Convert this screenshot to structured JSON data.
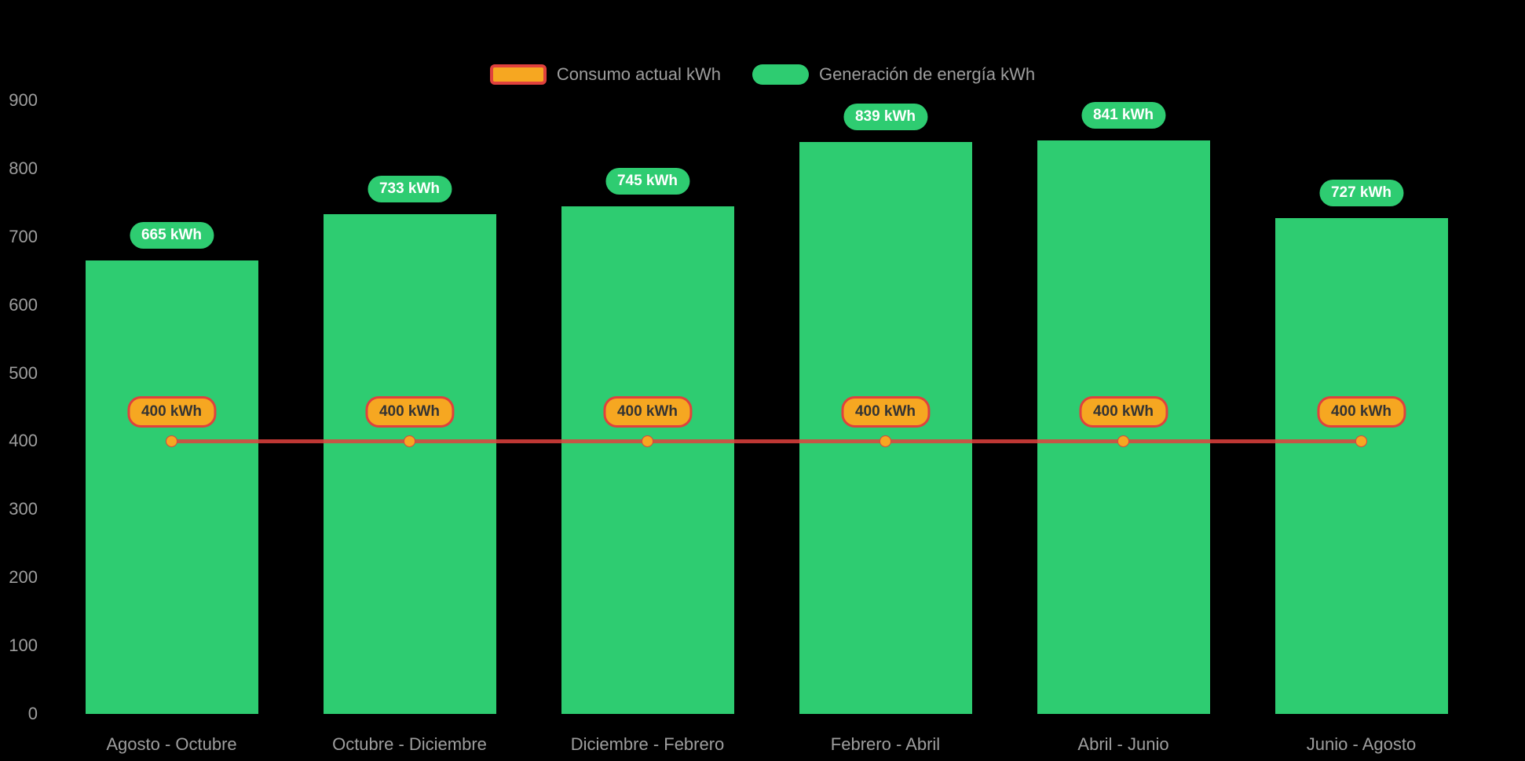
{
  "chart_data": {
    "type": "bar",
    "title": "",
    "categories": [
      "Agosto - Octubre",
      "Octubre - Diciembre",
      "Diciembre - Febrero",
      "Febrero - Abril",
      "Abril - Junio",
      "Junio - Agosto"
    ],
    "series": [
      {
        "name": "Consumo actual kWh",
        "type": "line",
        "values": [
          400,
          400,
          400,
          400,
          400,
          400
        ],
        "color": "#e0413d",
        "marker_color": "#f6a721",
        "label_bg": "#f6a721",
        "label_border": "#e0413d",
        "label_text_color": "#333333"
      },
      {
        "name": "Generación de energía kWh",
        "type": "bar",
        "values": [
          665,
          733,
          745,
          839,
          841,
          727
        ],
        "color": "#2ecc71",
        "label_bg": "#2ecc71",
        "label_text_color": "#ffffff"
      }
    ],
    "value_suffix": " kWh",
    "xlabel": "",
    "ylabel": "",
    "ylim": [
      0,
      900
    ],
    "ytick_step": 100,
    "grid": false,
    "legend_position": "top",
    "axis_text_color": "#9e9e9e",
    "background_color": "#000000"
  }
}
